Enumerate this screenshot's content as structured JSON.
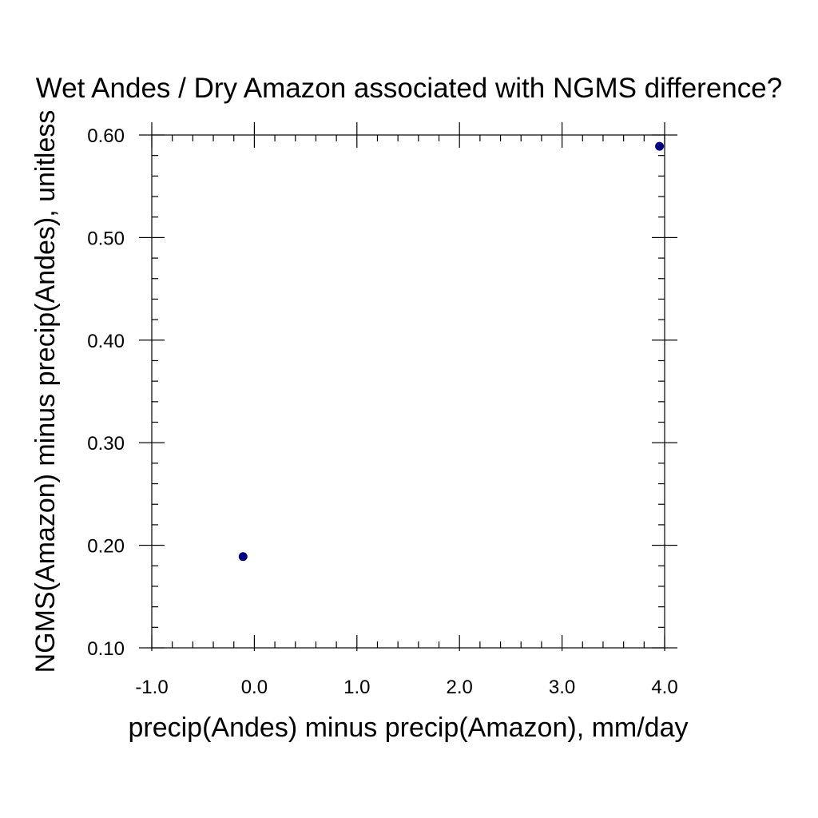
{
  "chart_data": {
    "type": "scatter",
    "title": "Wet Andes / Dry Amazon associated with NGMS difference?",
    "xlabel": "precip(Andes) minus precip(Amazon), mm/day",
    "ylabel": "NGMS(Amazon) minus precip(Andes), unitless",
    "xlim": [
      -1.0,
      4.0
    ],
    "ylim": [
      0.1,
      0.6
    ],
    "x_ticks": [
      -1.0,
      0.0,
      1.0,
      2.0,
      3.0,
      4.0
    ],
    "x_tick_labels": [
      "-1.0",
      "0.0",
      "1.0",
      "2.0",
      "3.0",
      "4.0"
    ],
    "y_ticks": [
      0.1,
      0.2,
      0.3,
      0.4,
      0.5,
      0.6
    ],
    "y_tick_labels": [
      "0.10",
      "0.20",
      "0.30",
      "0.40",
      "0.50",
      "0.60"
    ],
    "grid": false,
    "marker_color": "#000080",
    "points": [
      {
        "x": -0.11,
        "y": 0.189
      },
      {
        "x": 3.95,
        "y": 0.589
      }
    ]
  }
}
